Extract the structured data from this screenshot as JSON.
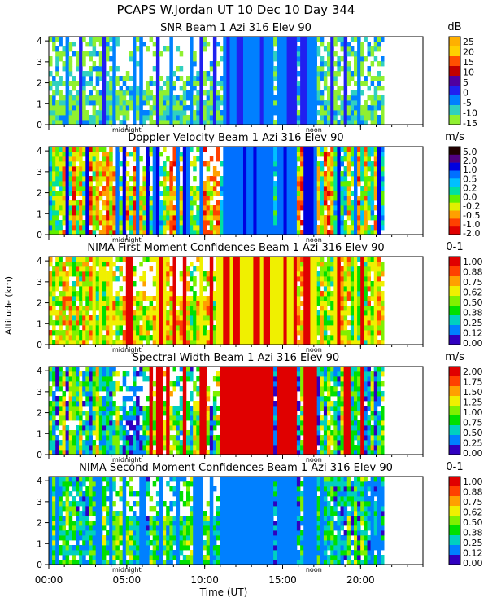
{
  "header": {
    "title": "PCAPS W.Jordan UT  10 Dec 10 Day 344"
  },
  "y_axis_label": "Altitude (km)",
  "x_axis_label": "Time (UT)",
  "chart_data": {
    "type": "heatmap",
    "x_axis": {
      "label": "Time (UT)",
      "range_hours": [
        0,
        24
      ],
      "ticks": [
        {
          "value": 0,
          "label": "00:00"
        },
        {
          "value": 5,
          "label": "05:00"
        },
        {
          "value": 10,
          "label": "10:00"
        },
        {
          "value": 15,
          "label": "15:00"
        },
        {
          "value": 20,
          "label": "20:00"
        }
      ],
      "markers": [
        {
          "value": 5,
          "label": "midnight"
        },
        {
          "value": 17,
          "label": "noon"
        }
      ]
    },
    "y_axis": {
      "label": "Altitude (km)",
      "range_km": [
        0,
        4.2
      ],
      "ticks": [
        0,
        1,
        2,
        3,
        4
      ]
    },
    "panels": [
      {
        "title": "SNR Beam 1 Azi 316 Elev 90",
        "unit": "dB",
        "colorbar_labels": [
          "25",
          "20",
          "15",
          "10",
          "5",
          "0",
          "-5",
          "-10",
          "-15"
        ],
        "colorbar_colors": [
          "#ffb000",
          "#ffd000",
          "#ff5000",
          "#c00000",
          "#5000a0",
          "#2020f0",
          "#0080ff",
          "#30d0c0",
          "#90f030"
        ]
      },
      {
        "title": "Doppler Velocity Beam 1 Azi 316 Elev 90",
        "unit": "m/s",
        "colorbar_labels": [
          "5.0",
          "2.0",
          "1.0",
          "0.5",
          "0.2",
          "0.0",
          "-0.2",
          "-0.5",
          "-1.0",
          "-2.0"
        ],
        "colorbar_colors": [
          "#200000",
          "#500080",
          "#0000e0",
          "#0070ff",
          "#00c0ff",
          "#00e0a0",
          "#60f000",
          "#e0f000",
          "#ffa000",
          "#ff4000",
          "#e00000"
        ]
      },
      {
        "title": "NIMA First Moment Confidences Beam 1 Azi 316 Elev 90",
        "unit": "0-1",
        "colorbar_labels": [
          "1.00",
          "0.88",
          "0.75",
          "0.62",
          "0.50",
          "0.38",
          "0.25",
          "0.12",
          "0.00"
        ],
        "colorbar_colors": [
          "#e00000",
          "#ff4000",
          "#ffa000",
          "#f0f000",
          "#80f000",
          "#00e000",
          "#00d0c0",
          "#0080ff",
          "#3000c0"
        ]
      },
      {
        "title": "Spectral Width Beam 1 Azi 316 Elev 90",
        "unit": "m/s",
        "colorbar_labels": [
          "2.00",
          "1.75",
          "1.50",
          "1.25",
          "1.00",
          "0.75",
          "0.50",
          "0.25",
          "0.00"
        ],
        "colorbar_colors": [
          "#e00000",
          "#ff4000",
          "#ffa000",
          "#f0f000",
          "#80f000",
          "#00e000",
          "#00d0c0",
          "#0080ff",
          "#3000c0"
        ]
      },
      {
        "title": "NIMA Second Moment Confidences Beam 1 Azi 316 Elev 90",
        "unit": "0-1",
        "colorbar_labels": [
          "1.00",
          "0.88",
          "0.75",
          "0.62",
          "0.50",
          "0.38",
          "0.25",
          "0.12",
          "0.00"
        ],
        "colorbar_colors": [
          "#e00000",
          "#ff4000",
          "#ffa000",
          "#f0f000",
          "#80f000",
          "#00e000",
          "#00d0c0",
          "#0080ff",
          "#3000c0"
        ]
      }
    ]
  }
}
